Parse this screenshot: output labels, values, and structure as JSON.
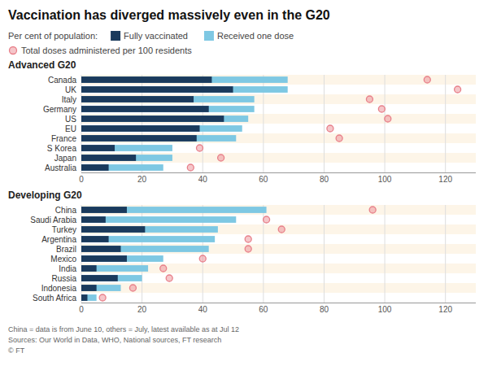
{
  "title": "Vaccination has diverged massively even in the G20",
  "subtitle": "Per cent of population:",
  "notes": [
    "China = data is from June 10, others = July, latest available as at Jul 12",
    "Sources: Our World in Data, WHO, National sources, FT research",
    "© FT"
  ],
  "chart_data": [
    {
      "type": "bar",
      "orientation": "horizontal",
      "title": "Advanced G20",
      "categories": [
        "Canada",
        "UK",
        "Italy",
        "Germany",
        "US",
        "EU",
        "France",
        "S Korea",
        "Japan",
        "Australia"
      ],
      "series": [
        {
          "name": "Fully vaccinated",
          "color": "#1a3a5c",
          "values": [
            43,
            50,
            37,
            42,
            47,
            39,
            38,
            11,
            18,
            9
          ]
        },
        {
          "name": "Received one dose",
          "color": "#7ec8e3",
          "values": [
            68,
            68,
            57,
            57,
            55,
            53,
            51,
            30,
            30,
            27
          ]
        },
        {
          "name": "Total doses administered per 100 residents",
          "type": "scatter",
          "marker": "circle",
          "color": "#e8808a",
          "values": [
            114,
            124,
            95,
            99,
            101,
            82,
            85,
            39,
            46,
            36
          ]
        }
      ],
      "xlim": [
        0,
        130
      ],
      "xticks": [
        0,
        20,
        40,
        60,
        80,
        100,
        120
      ],
      "grid": true
    },
    {
      "type": "bar",
      "orientation": "horizontal",
      "title": "Developing G20",
      "categories": [
        "China",
        "Saudi Arabia",
        "Turkey",
        "Argentina",
        "Brazil",
        "Mexico",
        "India",
        "Russia",
        "Indonesia",
        "South Africa"
      ],
      "series": [
        {
          "name": "Fully vaccinated",
          "color": "#1a3a5c",
          "values": [
            15,
            8,
            21,
            9,
            13,
            15,
            5,
            12,
            5,
            2
          ]
        },
        {
          "name": "Received one dose",
          "color": "#7ec8e3",
          "values": [
            61,
            51,
            45,
            44,
            42,
            27,
            22,
            20,
            13,
            5
          ]
        },
        {
          "name": "Total doses administered per 100 residents",
          "type": "scatter",
          "marker": "circle",
          "color": "#e8808a",
          "values": [
            96,
            61,
            66,
            55,
            55,
            40,
            27,
            29,
            17,
            7
          ]
        }
      ],
      "xlim": [
        0,
        130
      ],
      "xticks": [
        0,
        20,
        40,
        60,
        80,
        100,
        120
      ],
      "grid": true
    }
  ]
}
